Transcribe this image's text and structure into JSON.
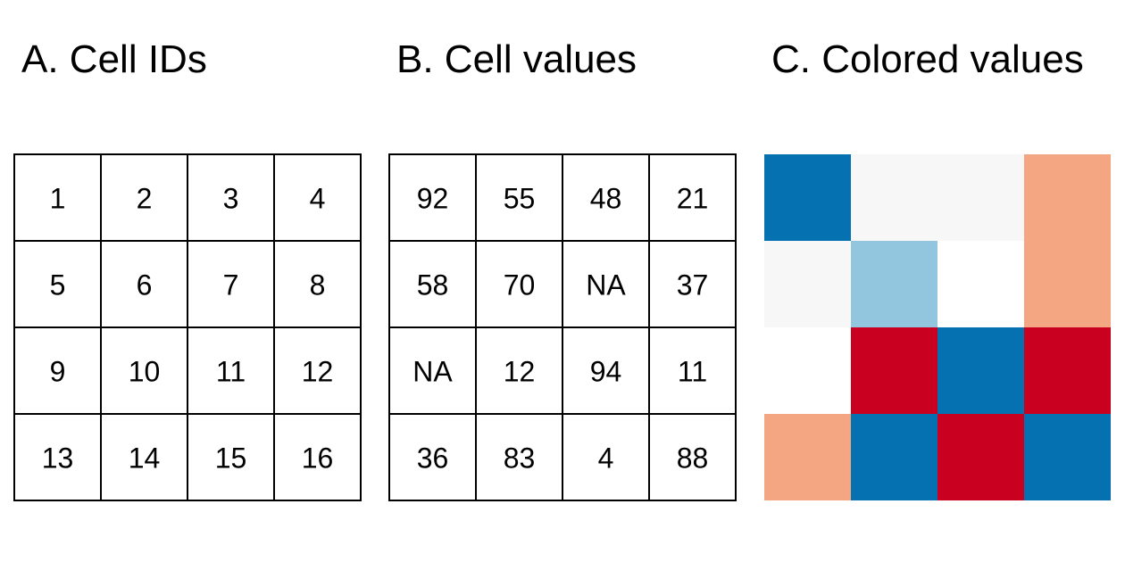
{
  "panels": [
    {
      "id": "cell-ids",
      "title": "A. Cell IDs",
      "type": "labeled-grid",
      "rows": [
        [
          "1",
          "2",
          "3",
          "4"
        ],
        [
          "5",
          "6",
          "7",
          "8"
        ],
        [
          "9",
          "10",
          "11",
          "12"
        ],
        [
          "13",
          "14",
          "15",
          "16"
        ]
      ]
    },
    {
      "id": "cell-values",
      "title": "B. Cell values",
      "type": "labeled-grid",
      "rows": [
        [
          "92",
          "55",
          "48",
          "21"
        ],
        [
          "58",
          "70",
          "NA",
          "37"
        ],
        [
          "NA",
          "12",
          "94",
          "11"
        ],
        [
          "36",
          "83",
          "4",
          "88"
        ]
      ]
    },
    {
      "id": "colored-values",
      "title": "C. Colored values",
      "type": "color-grid",
      "rows": [
        [
          "#0571b0",
          "#f7f7f7",
          "#f7f7f7",
          "#f4a582"
        ],
        [
          "#f7f7f7",
          "#92c5de",
          "#ffffff",
          "#f4a582"
        ],
        [
          "#ffffff",
          "#ca0020",
          "#0571b0",
          "#ca0020"
        ],
        [
          "#f4a582",
          "#0571b0",
          "#ca0020",
          "#0571b0"
        ]
      ]
    }
  ],
  "colors": {
    "grid_line": "#000000",
    "text": "#000000",
    "background": "#ffffff"
  }
}
